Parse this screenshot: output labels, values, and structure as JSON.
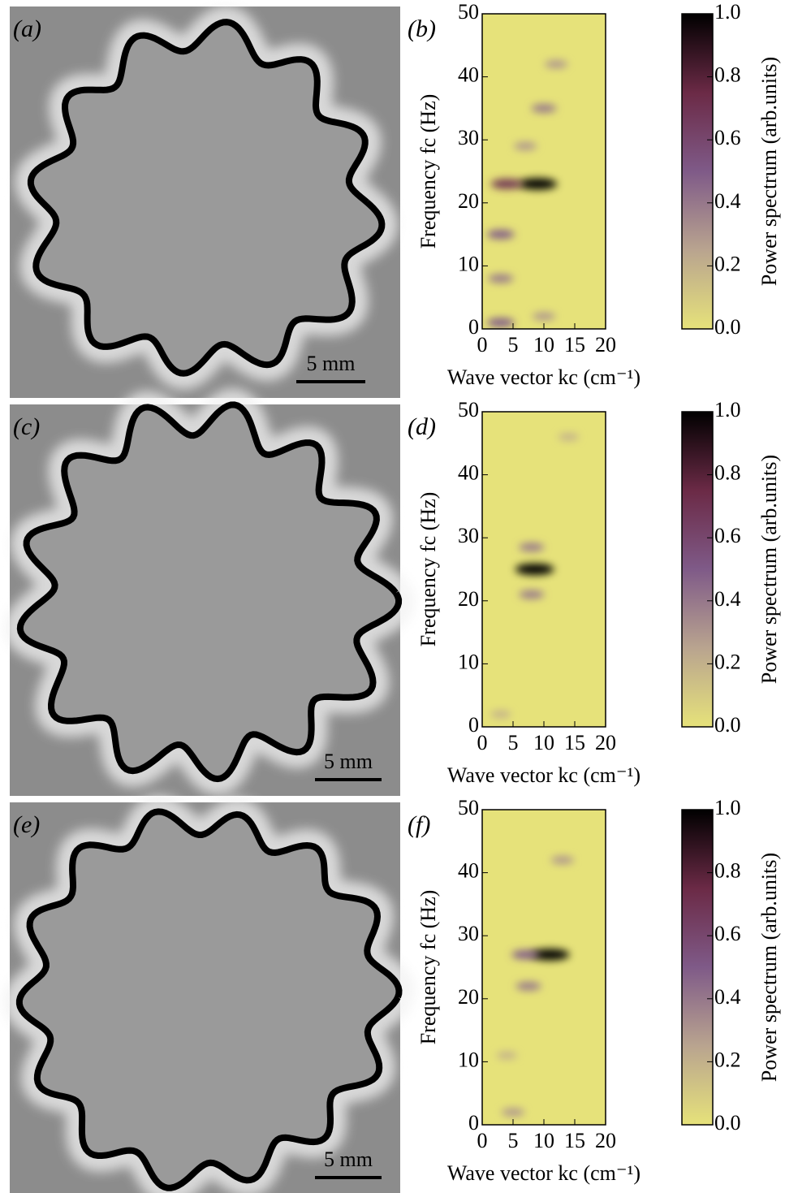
{
  "images": [
    {
      "label": "(a)",
      "scale_bar": "5 mm"
    },
    {
      "label": "(c)",
      "scale_bar": "5 mm"
    },
    {
      "label": "(e)",
      "scale_bar": "5 mm"
    }
  ],
  "chart_data": [
    {
      "type": "heatmap",
      "label": "(b)",
      "xlabel": "Wave vector kc (cm⁻¹)",
      "ylabel": "Frequency fc (Hz)",
      "x": [
        9,
        4,
        3,
        3,
        3,
        10,
        12,
        10,
        7
      ],
      "y": [
        23,
        23,
        15,
        1,
        8,
        35,
        42,
        2,
        29
      ],
      "values": [
        1.0,
        0.7,
        0.5,
        0.5,
        0.4,
        0.4,
        0.3,
        0.3,
        0.3
      ],
      "xlim": [
        0,
        20
      ],
      "ylim": [
        0,
        50
      ],
      "xticks": [
        0,
        5,
        10,
        15,
        20
      ],
      "yticks": [
        0,
        10,
        20,
        30,
        40,
        50
      ],
      "colorbar_label": "Power spectrum (arb.units)",
      "clim": [
        0,
        1
      ],
      "cticks": [
        {
          "value": 0,
          "label": "0.0"
        },
        0.2,
        0.4,
        0.6,
        0.8,
        {
          "value": 1,
          "label": "1.0"
        }
      ],
      "colors": [
        "#e6e27a",
        "#b9a48f",
        "#7f5a88",
        "#6b2a46",
        "#000000"
      ]
    },
    {
      "type": "heatmap",
      "label": "(d)",
      "xlabel": "Wave vector kc (cm⁻¹)",
      "ylabel": "Frequency fc (Hz)",
      "x": [
        8.5,
        8,
        8,
        3,
        14
      ],
      "y": [
        25,
        28.5,
        21,
        2,
        46
      ],
      "values": [
        1.0,
        0.4,
        0.4,
        0.2,
        0.2
      ],
      "xlim": [
        0,
        20
      ],
      "ylim": [
        0,
        50
      ],
      "xticks": [
        0,
        5,
        10,
        15,
        20
      ],
      "yticks": [
        0,
        10,
        20,
        30,
        40,
        50
      ],
      "colorbar_label": "Power spectrum (arb.units)",
      "clim": [
        0,
        1
      ],
      "cticks": [
        {
          "value": 0,
          "label": "0.0"
        },
        0.2,
        0.4,
        0.6,
        0.8,
        {
          "value": 1,
          "label": "1.0"
        }
      ],
      "colors": [
        "#e6e27a",
        "#b9a48f",
        "#7f5a88",
        "#6b2a46",
        "#000000"
      ]
    },
    {
      "type": "heatmap",
      "label": "(f)",
      "xlabel": "Wave vector kc (cm⁻¹)",
      "ylabel": "Frequency fc (Hz)",
      "x": [
        11,
        7,
        7.5,
        13,
        5,
        4
      ],
      "y": [
        27,
        27,
        22,
        42,
        2,
        11
      ],
      "values": [
        1.0,
        0.5,
        0.4,
        0.3,
        0.3,
        0.2
      ],
      "xlim": [
        0,
        20
      ],
      "ylim": [
        0,
        50
      ],
      "xticks": [
        0,
        5,
        10,
        15,
        20
      ],
      "yticks": [
        0,
        10,
        20,
        30,
        40,
        50
      ],
      "colorbar_label": "Power spectrum (arb.units)",
      "clim": [
        0,
        1
      ],
      "cticks": [
        {
          "value": 0,
          "label": "0.0"
        },
        0.2,
        0.4,
        0.6,
        0.8,
        {
          "value": 1,
          "label": "1.0"
        }
      ],
      "colors": [
        "#e6e27a",
        "#b9a48f",
        "#7f5a88",
        "#6b2a46",
        "#000000"
      ]
    }
  ]
}
